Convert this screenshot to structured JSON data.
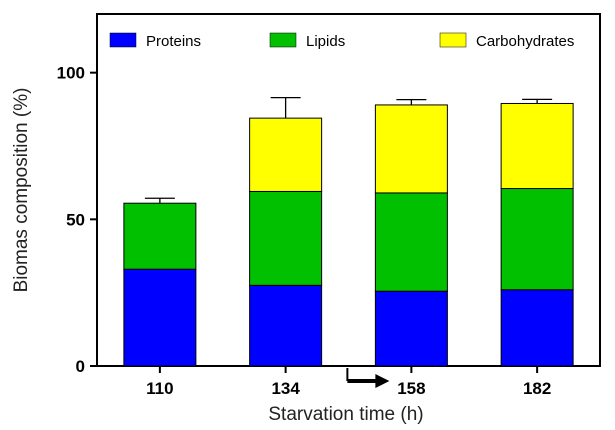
{
  "chart_data": {
    "type": "bar",
    "stacked": true,
    "categories": [
      "110",
      "134",
      "158",
      "182"
    ],
    "xlabel": "Starvation time (h)",
    "ylabel": "Biomas composition (%)",
    "ylim": [
      0,
      120
    ],
    "yticks": [
      0,
      50,
      100
    ],
    "grid": false,
    "legend": "top, horizontal",
    "series": [
      {
        "name": "Proteins",
        "color": "#0000ff",
        "values": [
          33,
          27.5,
          25.5,
          26
        ],
        "errors": [
          1.3,
          1.3,
          1.0,
          1.0
        ]
      },
      {
        "name": "Lipids",
        "color": "#00c000",
        "values": [
          22.5,
          32,
          33.5,
          34.5
        ],
        "errors": [
          1.7,
          1.0,
          2.5,
          1.8
        ]
      },
      {
        "name": "Carbohydrates",
        "color": "#ffff00",
        "values": [
          null,
          25,
          30,
          29
        ],
        "errors": [
          null,
          7.0,
          1.8,
          1.4
        ]
      }
    ],
    "annotations": [
      {
        "type": "arrow",
        "direction": "right",
        "category": "158",
        "note": "pointing to 158"
      }
    ]
  }
}
